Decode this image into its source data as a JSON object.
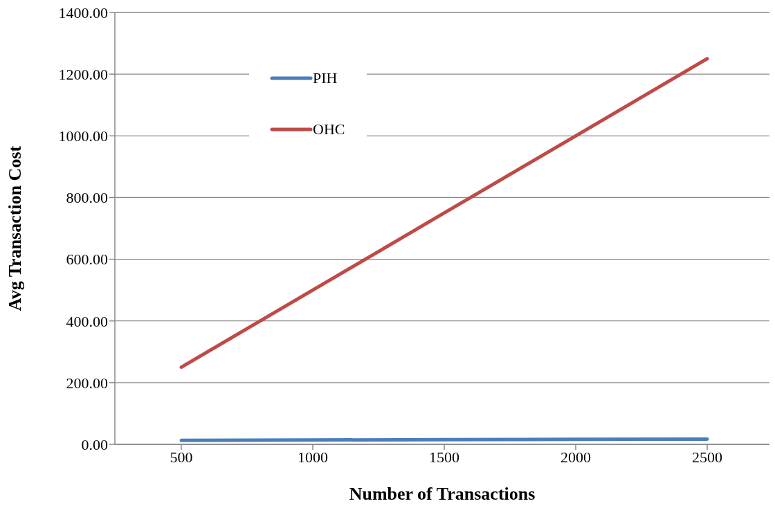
{
  "chart_data": {
    "type": "line",
    "xlabel": "Number of Transactions",
    "ylabel": "Avg Transaction Cost",
    "categories": [
      "500",
      "1000",
      "1500",
      "2000",
      "2500"
    ],
    "series": [
      {
        "name": "PIH",
        "color": "#4a7ebb",
        "values": [
          13,
          14,
          15,
          16,
          17
        ]
      },
      {
        "name": "OHC",
        "color": "#be4b48",
        "values": [
          250,
          500,
          750,
          1000,
          1250
        ]
      }
    ],
    "ylim": [
      0,
      1400
    ],
    "yticks": [
      {
        "value": 0,
        "label": "0.00"
      },
      {
        "value": 200,
        "label": "200.00"
      },
      {
        "value": 400,
        "label": "400.00"
      },
      {
        "value": 600,
        "label": "600.00"
      },
      {
        "value": 800,
        "label": "800.00"
      },
      {
        "value": 1000,
        "label": "1000.00"
      },
      {
        "value": 1200,
        "label": "1200.00"
      },
      {
        "value": 1400,
        "label": "1400.00"
      }
    ],
    "grid": "y",
    "legend": "top left",
    "marker": "none",
    "line_style": "solid"
  }
}
